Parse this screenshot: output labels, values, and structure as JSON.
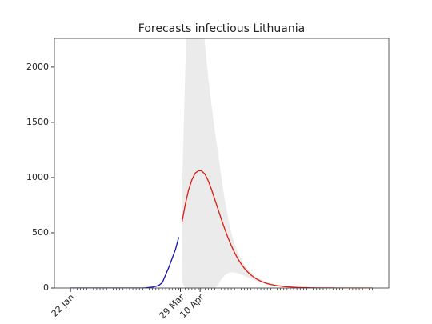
{
  "chart_data": {
    "type": "line",
    "title": "Forecasts infectious Lithuania",
    "x": [
      0,
      2,
      4,
      6,
      8,
      10,
      12,
      14,
      16,
      18,
      20,
      22,
      24,
      26,
      28,
      30,
      32,
      34,
      36,
      38,
      40,
      42,
      44,
      46,
      48,
      50,
      52,
      54,
      56,
      58,
      60,
      62,
      64,
      66,
      68,
      70,
      72,
      74,
      76,
      78,
      80,
      82,
      84,
      86,
      88,
      90,
      92,
      94,
      96,
      98,
      100,
      102,
      104,
      106,
      108,
      110,
      112,
      114,
      116,
      118,
      120,
      122,
      124,
      126,
      128,
      130,
      132,
      134,
      136,
      138,
      140,
      142,
      144,
      146,
      148,
      150,
      152,
      154,
      156,
      158,
      160,
      162,
      164,
      166,
      168,
      170,
      172,
      174,
      176,
      178,
      180,
      182,
      184
    ],
    "xlim": [
      -9.8,
      194
    ],
    "xticks": [
      {
        "value": 0,
        "label": "22 Jan"
      },
      {
        "value": 67,
        "label": "29 Mar"
      },
      {
        "value": 79,
        "label": "10 Apr"
      }
    ],
    "ylim": [
      0,
      2260
    ],
    "yticks": [
      0,
      500,
      1000,
      1500,
      2000
    ],
    "series": [
      {
        "color": "#1010b0",
        "values": [
          0,
          0,
          0,
          0,
          0,
          0,
          0,
          0,
          0,
          0,
          0,
          0,
          0,
          0,
          0,
          0,
          0,
          0,
          0,
          0,
          0,
          0,
          0,
          2,
          5,
          8,
          15,
          25,
          50,
          120,
          190,
          270,
          350,
          460,
          null,
          null,
          null,
          null,
          null,
          null,
          null,
          null,
          null,
          null,
          null,
          null,
          null,
          null,
          null,
          null,
          null,
          null,
          null,
          null,
          null,
          null,
          null,
          null,
          null,
          null,
          null,
          null,
          null,
          null,
          null,
          null,
          null,
          null,
          null,
          null,
          null,
          null,
          null,
          null,
          null,
          null,
          null,
          null,
          null,
          null,
          null,
          null,
          null,
          null,
          null,
          null,
          null,
          null,
          null,
          null,
          null,
          null,
          null
        ]
      },
      {
        "color": "#dd1a10",
        "values": [
          null,
          null,
          null,
          null,
          null,
          null,
          null,
          null,
          null,
          null,
          null,
          null,
          null,
          null,
          null,
          null,
          null,
          null,
          null,
          null,
          null,
          null,
          null,
          null,
          null,
          null,
          null,
          null,
          null,
          null,
          null,
          null,
          null,
          null,
          600,
          760,
          890,
          980,
          1040,
          1062,
          1060,
          1030,
          970,
          890,
          800,
          710,
          620,
          535,
          455,
          385,
          320,
          265,
          218,
          178,
          145,
          118,
          95,
          77,
          62,
          50,
          40,
          32,
          26,
          21,
          17,
          13,
          11,
          9,
          7,
          5,
          4,
          3,
          3,
          2,
          2,
          1,
          1,
          1,
          1,
          1,
          1,
          0,
          0,
          0,
          0,
          0,
          0,
          0,
          0,
          0,
          0,
          0,
          0
        ]
      }
    ],
    "band": {
      "color": "#ebebeb",
      "lower": [
        null,
        null,
        null,
        null,
        null,
        null,
        null,
        null,
        null,
        null,
        null,
        null,
        null,
        null,
        null,
        null,
        null,
        null,
        null,
        null,
        null,
        null,
        null,
        null,
        null,
        null,
        null,
        null,
        null,
        null,
        null,
        null,
        null,
        null,
        50,
        0,
        0,
        0,
        0,
        0,
        0,
        0,
        0,
        0,
        0,
        30,
        80,
        115,
        135,
        142,
        140,
        133,
        122,
        110,
        97,
        85,
        73,
        62,
        52,
        43,
        35,
        29,
        24,
        19,
        15,
        12,
        10,
        8,
        6,
        4,
        3,
        2,
        2,
        2,
        1,
        0,
        0,
        0,
        0,
        0,
        0,
        0,
        0,
        0,
        0,
        0,
        0,
        0,
        0,
        0,
        0,
        0,
        0
      ],
      "upper": [
        null,
        null,
        null,
        null,
        null,
        null,
        null,
        null,
        null,
        null,
        null,
        null,
        null,
        null,
        null,
        null,
        null,
        null,
        null,
        null,
        null,
        null,
        null,
        null,
        null,
        null,
        null,
        null,
        null,
        null,
        null,
        null,
        null,
        null,
        900,
        2000,
        2800,
        3200,
        3300,
        3100,
        2600,
        2200,
        1900,
        1650,
        1420,
        1220,
        1000,
        800,
        640,
        500,
        400,
        320,
        260,
        210,
        170,
        140,
        115,
        95,
        78,
        64,
        53,
        44,
        36,
        29,
        24,
        19,
        15,
        12,
        10,
        8,
        6,
        5,
        4,
        3,
        2,
        1,
        1,
        1,
        1,
        0,
        0,
        0,
        0,
        0,
        0,
        0,
        0,
        0,
        0,
        0,
        0,
        0,
        0
      ]
    }
  }
}
